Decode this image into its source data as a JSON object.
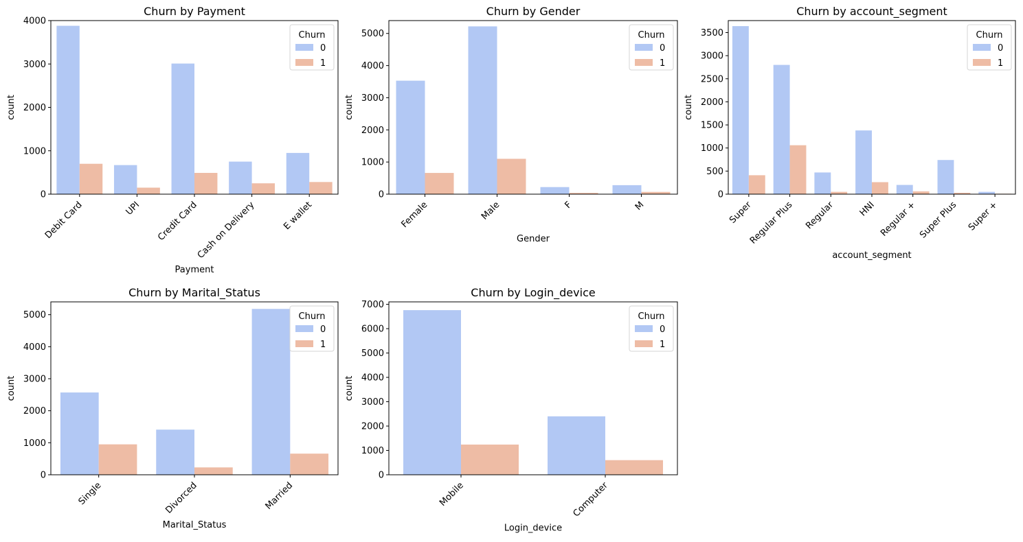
{
  "figure": {
    "background": "#ffffff"
  },
  "series_colors": {
    "0": "#b2c8f4",
    "1": "#eebca5"
  },
  "chart_data": [
    {
      "type": "bar",
      "title": "Churn by Payment",
      "xlabel": "Payment",
      "ylabel": "count",
      "categories": [
        "Debit Card",
        "UPI",
        "Credit Card",
        "Cash on Delivery",
        "E wallet"
      ],
      "series": [
        {
          "name": "0",
          "values": [
            3880,
            670,
            3010,
            750,
            950
          ]
        },
        {
          "name": "1",
          "values": [
            700,
            150,
            490,
            250,
            280
          ]
        }
      ],
      "ylim": [
        0,
        4000
      ],
      "yticks": [
        0,
        1000,
        2000,
        3000,
        4000
      ],
      "legend_title": "Churn",
      "legend_position": "top-right",
      "xtick_rotation": 45
    },
    {
      "type": "bar",
      "title": "Churn by Gender",
      "xlabel": "Gender",
      "ylabel": "count",
      "categories": [
        "Female",
        "Male",
        "F",
        "M"
      ],
      "series": [
        {
          "name": "0",
          "values": [
            3530,
            5220,
            220,
            280
          ]
        },
        {
          "name": "1",
          "values": [
            660,
            1100,
            40,
            70
          ]
        }
      ],
      "ylim": [
        0,
        5400
      ],
      "yticks": [
        0,
        1000,
        2000,
        3000,
        4000,
        5000
      ],
      "legend_title": "Churn",
      "legend_position": "top-right",
      "xtick_rotation": 45
    },
    {
      "type": "bar",
      "title": "Churn by account_segment",
      "xlabel": "account_segment",
      "ylabel": "count",
      "categories": [
        "Super",
        "Regular Plus",
        "Regular",
        "HNI",
        "Regular +",
        "Super Plus",
        "Super +"
      ],
      "series": [
        {
          "name": "0",
          "values": [
            3640,
            2800,
            470,
            1380,
            200,
            740,
            50
          ]
        },
        {
          "name": "1",
          "values": [
            410,
            1060,
            50,
            260,
            60,
            30,
            10
          ]
        }
      ],
      "ylim": [
        0,
        3760
      ],
      "yticks": [
        0,
        500,
        1000,
        1500,
        2000,
        2500,
        3000,
        3500
      ],
      "legend_title": "Churn",
      "legend_position": "top-right",
      "xtick_rotation": 45
    },
    {
      "type": "bar",
      "title": "Churn by Marital_Status",
      "xlabel": "Marital_Status",
      "ylabel": "count",
      "categories": [
        "Single",
        "Divorced",
        "Married"
      ],
      "series": [
        {
          "name": "0",
          "values": [
            2570,
            1410,
            5180
          ]
        },
        {
          "name": "1",
          "values": [
            950,
            230,
            660
          ]
        }
      ],
      "ylim": [
        0,
        5400
      ],
      "yticks": [
        0,
        1000,
        2000,
        3000,
        4000,
        5000
      ],
      "legend_title": "Churn",
      "legend_position": "top-right",
      "xtick_rotation": 45
    },
    {
      "type": "bar",
      "title": "Churn by Login_device",
      "xlabel": "Login_device",
      "ylabel": "count",
      "categories": [
        "Mobile",
        "Computer"
      ],
      "series": [
        {
          "name": "0",
          "values": [
            6760,
            2400
          ]
        },
        {
          "name": "1",
          "values": [
            1240,
            600
          ]
        }
      ],
      "ylim": [
        0,
        7100
      ],
      "yticks": [
        0,
        1000,
        2000,
        3000,
        4000,
        5000,
        6000,
        7000
      ],
      "legend_title": "Churn",
      "legend_position": "top-right",
      "xtick_rotation": 45
    }
  ]
}
